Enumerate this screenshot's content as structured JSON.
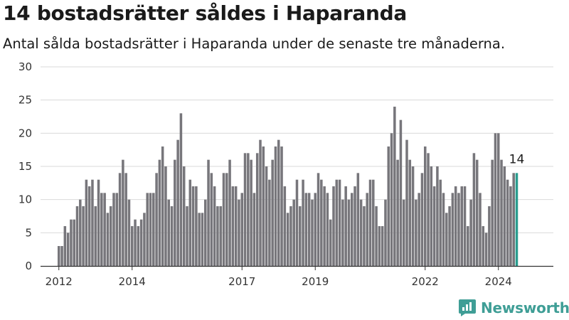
{
  "header": {
    "title": "14 bostadsrätter såldes i Haparanda",
    "subtitle": "Antal sålda bostadsrätter i Haparanda under de senaste tre månaderna."
  },
  "brand": {
    "name": "Newsworthy"
  },
  "colors": {
    "bar": "#77767b",
    "highlight": "#2a9d8f",
    "grid": "#d9d9d9",
    "axis": "#333333",
    "brand": "#3f9e96"
  },
  "chart_data": {
    "type": "bar",
    "title": "14 bostadsrätter såldes i Haparanda",
    "xlabel": "",
    "ylabel": "",
    "ylim": [
      0,
      30
    ],
    "y_ticks": [
      0,
      5,
      10,
      15,
      20,
      25,
      30
    ],
    "x_tick_labels": [
      "2012",
      "2014",
      "2017",
      "2019",
      "2022",
      "2024"
    ],
    "x_tick_positions": [
      2012.0,
      2014.0,
      2017.0,
      2019.0,
      2022.0,
      2024.0
    ],
    "x_range": [
      2011.5,
      2025.5
    ],
    "grid": true,
    "start_year": 2012,
    "last_label": "14",
    "values": [
      3,
      3,
      6,
      5,
      7,
      7,
      9,
      10,
      9,
      13,
      12,
      13,
      9,
      13,
      11,
      11,
      8,
      9,
      11,
      11,
      14,
      16,
      14,
      10,
      6,
      7,
      6,
      7,
      8,
      11,
      11,
      11,
      14,
      16,
      18,
      15,
      10,
      9,
      16,
      19,
      23,
      15,
      9,
      13,
      12,
      12,
      8,
      8,
      10,
      16,
      14,
      12,
      9,
      9,
      14,
      14,
      16,
      12,
      12,
      10,
      11,
      17,
      17,
      16,
      11,
      17,
      19,
      18,
      15,
      13,
      16,
      18,
      19,
      18,
      12,
      8,
      9,
      10,
      13,
      9,
      13,
      11,
      11,
      10,
      11,
      14,
      13,
      12,
      11,
      7,
      12,
      13,
      13,
      10,
      12,
      10,
      11,
      12,
      14,
      10,
      9,
      11,
      13,
      13,
      9,
      6,
      6,
      10,
      18,
      20,
      24,
      16,
      22,
      10,
      19,
      16,
      15,
      10,
      11,
      14,
      18,
      17,
      15,
      12,
      15,
      13,
      11,
      8,
      9,
      11,
      12,
      11,
      12,
      12,
      6,
      10,
      17,
      16,
      11,
      6,
      5,
      9,
      16,
      20,
      20,
      16,
      15,
      13,
      12,
      14,
      14
    ],
    "highlight_last": true
  }
}
